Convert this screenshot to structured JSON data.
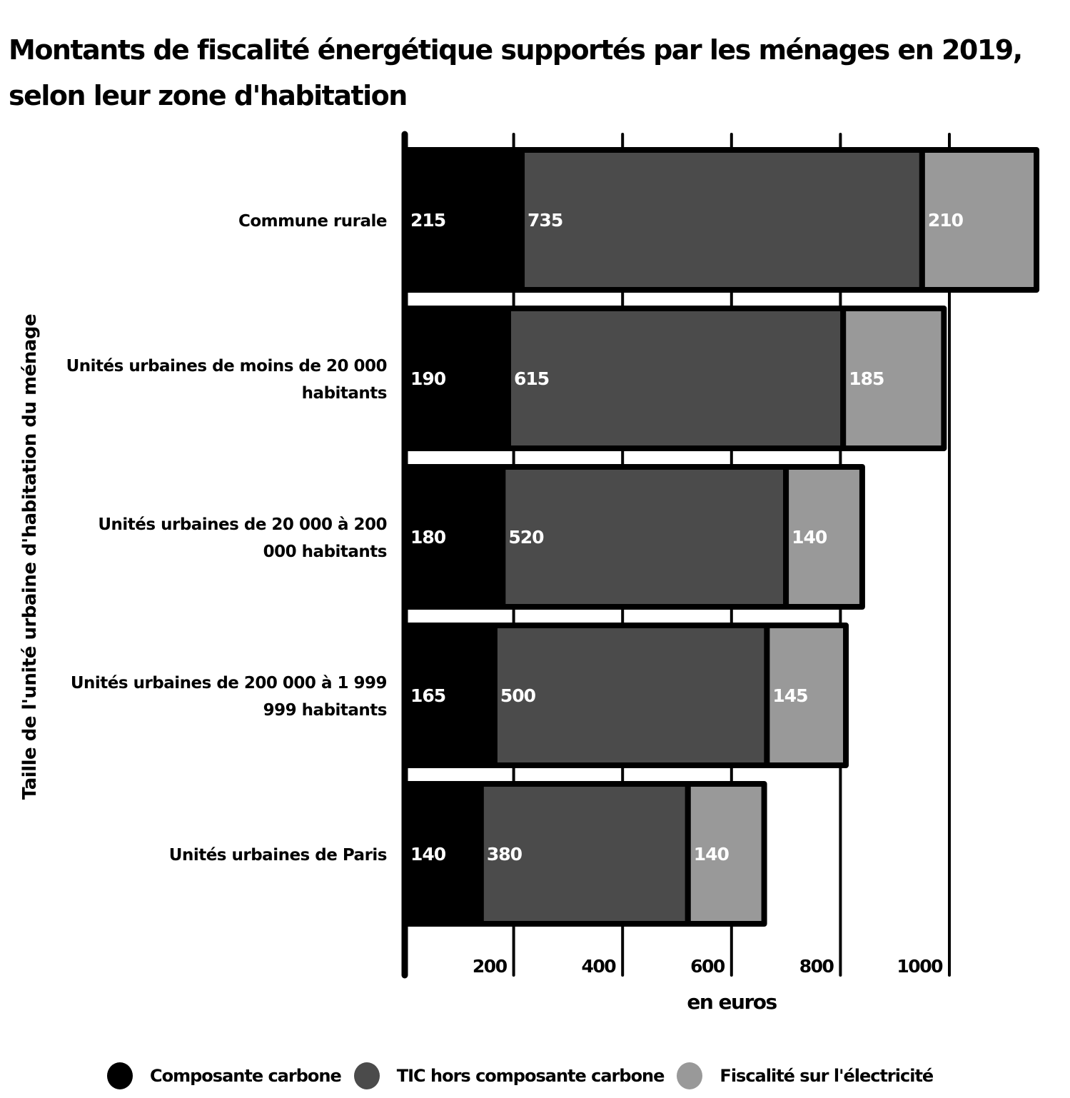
{
  "chart_data": {
    "type": "bar",
    "orientation": "horizontal",
    "stacked": true,
    "title": "Montants de fiscalité énergétique supportés par les ménages en 2019, selon leur zone d'habitation",
    "title_lines": [
      "Montants de fiscalité énergétique supportés par les ménages en 2019,",
      "selon leur zone d'habitation"
    ],
    "xlabel": "en euros",
    "ylabel": "Taille de l'unité urbaine d'habitation du ménage",
    "xlim": [
      0,
      1160
    ],
    "xticks": [
      200,
      400,
      600,
      800,
      1000
    ],
    "grid": true,
    "legend_position": "bottom",
    "categories": [
      [
        "Commune rurale"
      ],
      [
        "Unités urbaines de moins de 20 000",
        "habitants"
      ],
      [
        "Unités urbaines de 20 000 à 200",
        "000 habitants"
      ],
      [
        "Unités urbaines de 200 000 à 1 999",
        "999 habitants"
      ],
      [
        "Unités urbaines de Paris"
      ]
    ],
    "series": [
      {
        "name": "Composante carbone",
        "color": "#000000",
        "values": [
          215,
          190,
          180,
          165,
          140
        ]
      },
      {
        "name": "TIC hors composante carbone",
        "color": "#4b4b4b",
        "values": [
          735,
          615,
          520,
          500,
          380
        ]
      },
      {
        "name": "Fiscalité sur l'électricité",
        "color": "#999999",
        "values": [
          210,
          185,
          140,
          145,
          140
        ]
      }
    ]
  }
}
